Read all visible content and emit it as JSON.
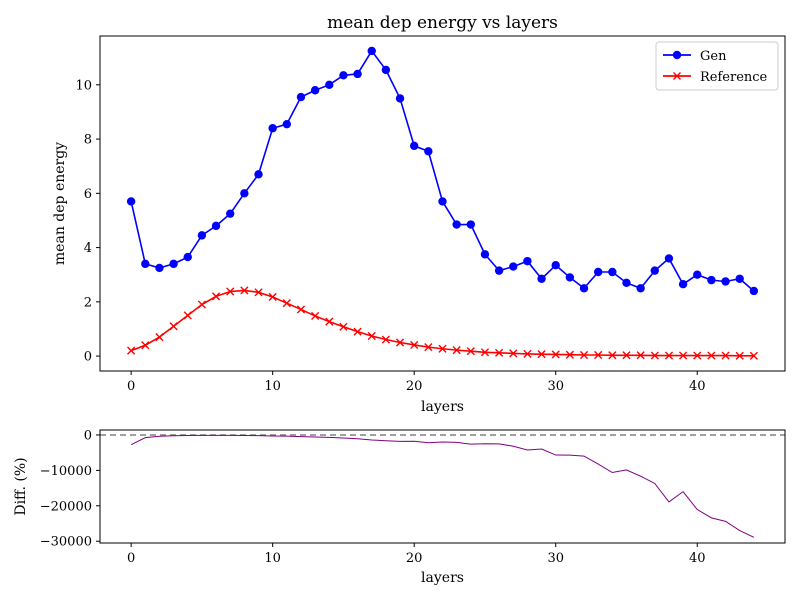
{
  "chart_data": [
    {
      "type": "line",
      "title": "mean dep energy vs layers",
      "xlabel": "layers",
      "ylabel": "mean dep energy",
      "xlim": [
        -2.2,
        46.2
      ],
      "ylim": [
        -0.55,
        11.8
      ],
      "xticks": [
        0,
        10,
        20,
        30,
        40
      ],
      "yticks": [
        0,
        2,
        4,
        6,
        8,
        10
      ],
      "legend_position": "top-right",
      "x": [
        0,
        1,
        2,
        3,
        4,
        5,
        6,
        7,
        8,
        9,
        10,
        11,
        12,
        13,
        14,
        15,
        16,
        17,
        18,
        19,
        20,
        21,
        22,
        23,
        24,
        25,
        26,
        27,
        28,
        29,
        30,
        31,
        32,
        33,
        34,
        35,
        36,
        37,
        38,
        39,
        40,
        41,
        42,
        43,
        44
      ],
      "series": [
        {
          "name": "Gen",
          "color": "#0000ff",
          "marker": "circle",
          "values": [
            5.7,
            3.4,
            3.25,
            3.4,
            3.65,
            4.45,
            4.8,
            5.25,
            6.0,
            6.7,
            8.4,
            8.55,
            9.55,
            9.8,
            10.0,
            10.35,
            10.4,
            11.25,
            10.55,
            9.5,
            7.75,
            7.55,
            5.7,
            4.85,
            4.85,
            3.75,
            3.15,
            3.3,
            3.5,
            2.85,
            3.35,
            2.9,
            2.5,
            3.1,
            3.1,
            2.7,
            2.5,
            3.15,
            3.6,
            2.65,
            3.0,
            2.8,
            2.75,
            2.85,
            2.4
          ]
        },
        {
          "name": "Reference",
          "color": "#ff0000",
          "marker": "x",
          "values": [
            0.2,
            0.4,
            0.7,
            1.1,
            1.5,
            1.9,
            2.2,
            2.38,
            2.42,
            2.35,
            2.18,
            1.95,
            1.72,
            1.48,
            1.27,
            1.08,
            0.9,
            0.74,
            0.61,
            0.5,
            0.41,
            0.33,
            0.27,
            0.22,
            0.18,
            0.14,
            0.12,
            0.1,
            0.08,
            0.07,
            0.06,
            0.05,
            0.04,
            0.04,
            0.03,
            0.03,
            0.03,
            0.02,
            0.02,
            0.02,
            0.02,
            0.02,
            0.02,
            0.01,
            0.01
          ]
        }
      ]
    },
    {
      "type": "line",
      "xlabel": "layers",
      "ylabel": "Diff. (%)",
      "xlim": [
        -2.2,
        46.2
      ],
      "ylim": [
        -30500,
        1400
      ],
      "xticks": [
        0,
        10,
        20,
        30,
        40
      ],
      "yticks": [
        0,
        -10000,
        -20000,
        -30000
      ],
      "reference_line": {
        "y": 0,
        "color": "#808080",
        "style": "dashed"
      },
      "x": [
        0,
        1,
        2,
        3,
        4,
        5,
        6,
        7,
        8,
        9,
        10,
        11,
        12,
        13,
        14,
        15,
        16,
        17,
        18,
        19,
        20,
        21,
        22,
        23,
        24,
        25,
        26,
        27,
        28,
        29,
        30,
        31,
        32,
        33,
        34,
        35,
        36,
        37,
        38,
        39,
        40,
        41,
        42,
        43,
        44
      ],
      "series": [
        {
          "color": "#800080",
          "values": [
            -2750,
            -750,
            -365,
            -210,
            -140,
            -130,
            -120,
            -120,
            -150,
            -185,
            -285,
            -340,
            -455,
            -560,
            -690,
            -860,
            -1055,
            -1420,
            -1630,
            -1800,
            -1790,
            -2190,
            -2000,
            -2100,
            -2590,
            -2490,
            -2520,
            -3200,
            -4250,
            -3970,
            -5670,
            -5690,
            -5960,
            -8200,
            -10600,
            -9870,
            -11650,
            -13700,
            -18900,
            -16000,
            -21050,
            -23400,
            -24400,
            -27000,
            -28900
          ]
        }
      ]
    }
  ]
}
